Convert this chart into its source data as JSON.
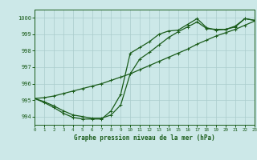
{
  "title": "Graphe pression niveau de la mer (hPa)",
  "bg_color": "#cce8e8",
  "grid_color": "#aacccc",
  "line_color": "#1a5c1a",
  "xlim": [
    0,
    23
  ],
  "ylim": [
    993.5,
    1000.5
  ],
  "yticks": [
    994,
    995,
    996,
    997,
    998,
    999,
    1000
  ],
  "xticks": [
    0,
    1,
    2,
    3,
    4,
    5,
    6,
    7,
    8,
    9,
    10,
    11,
    12,
    13,
    14,
    15,
    16,
    17,
    18,
    19,
    20,
    21,
    22,
    23
  ],
  "series1": {
    "x": [
      0,
      1,
      2,
      3,
      4,
      5,
      6,
      7,
      8,
      9,
      10,
      11,
      12,
      13,
      14,
      15,
      16,
      17,
      18,
      19,
      20,
      21,
      22,
      23
    ],
    "y": [
      995.1,
      995.15,
      995.25,
      995.4,
      995.55,
      995.7,
      995.85,
      996.0,
      996.2,
      996.4,
      996.6,
      996.85,
      997.1,
      997.35,
      997.6,
      997.85,
      998.1,
      998.4,
      998.65,
      998.9,
      999.1,
      999.3,
      999.55,
      999.8
    ]
  },
  "series2": {
    "x": [
      0,
      1,
      2,
      3,
      4,
      5,
      6,
      7,
      8,
      9,
      10,
      11,
      12,
      13,
      14,
      15,
      16,
      17,
      18,
      19,
      20,
      21,
      22,
      23
    ],
    "y": [
      995.1,
      994.9,
      994.65,
      994.35,
      994.1,
      994.0,
      993.9,
      993.9,
      994.1,
      994.7,
      996.6,
      997.5,
      997.9,
      998.35,
      998.8,
      999.15,
      999.45,
      999.75,
      999.35,
      999.3,
      999.3,
      999.45,
      999.95,
      999.85
    ]
  },
  "series3": {
    "x": [
      0,
      1,
      2,
      3,
      4,
      5,
      6,
      7,
      8,
      9,
      10,
      11,
      12,
      13,
      14,
      15,
      16,
      17,
      18,
      19,
      20,
      21,
      22,
      23
    ],
    "y": [
      995.1,
      994.85,
      994.55,
      994.2,
      993.95,
      993.85,
      993.85,
      993.85,
      994.35,
      995.35,
      997.85,
      998.2,
      998.55,
      999.0,
      999.2,
      999.25,
      999.6,
      999.95,
      999.4,
      999.25,
      999.3,
      999.5,
      999.95,
      999.85
    ]
  }
}
